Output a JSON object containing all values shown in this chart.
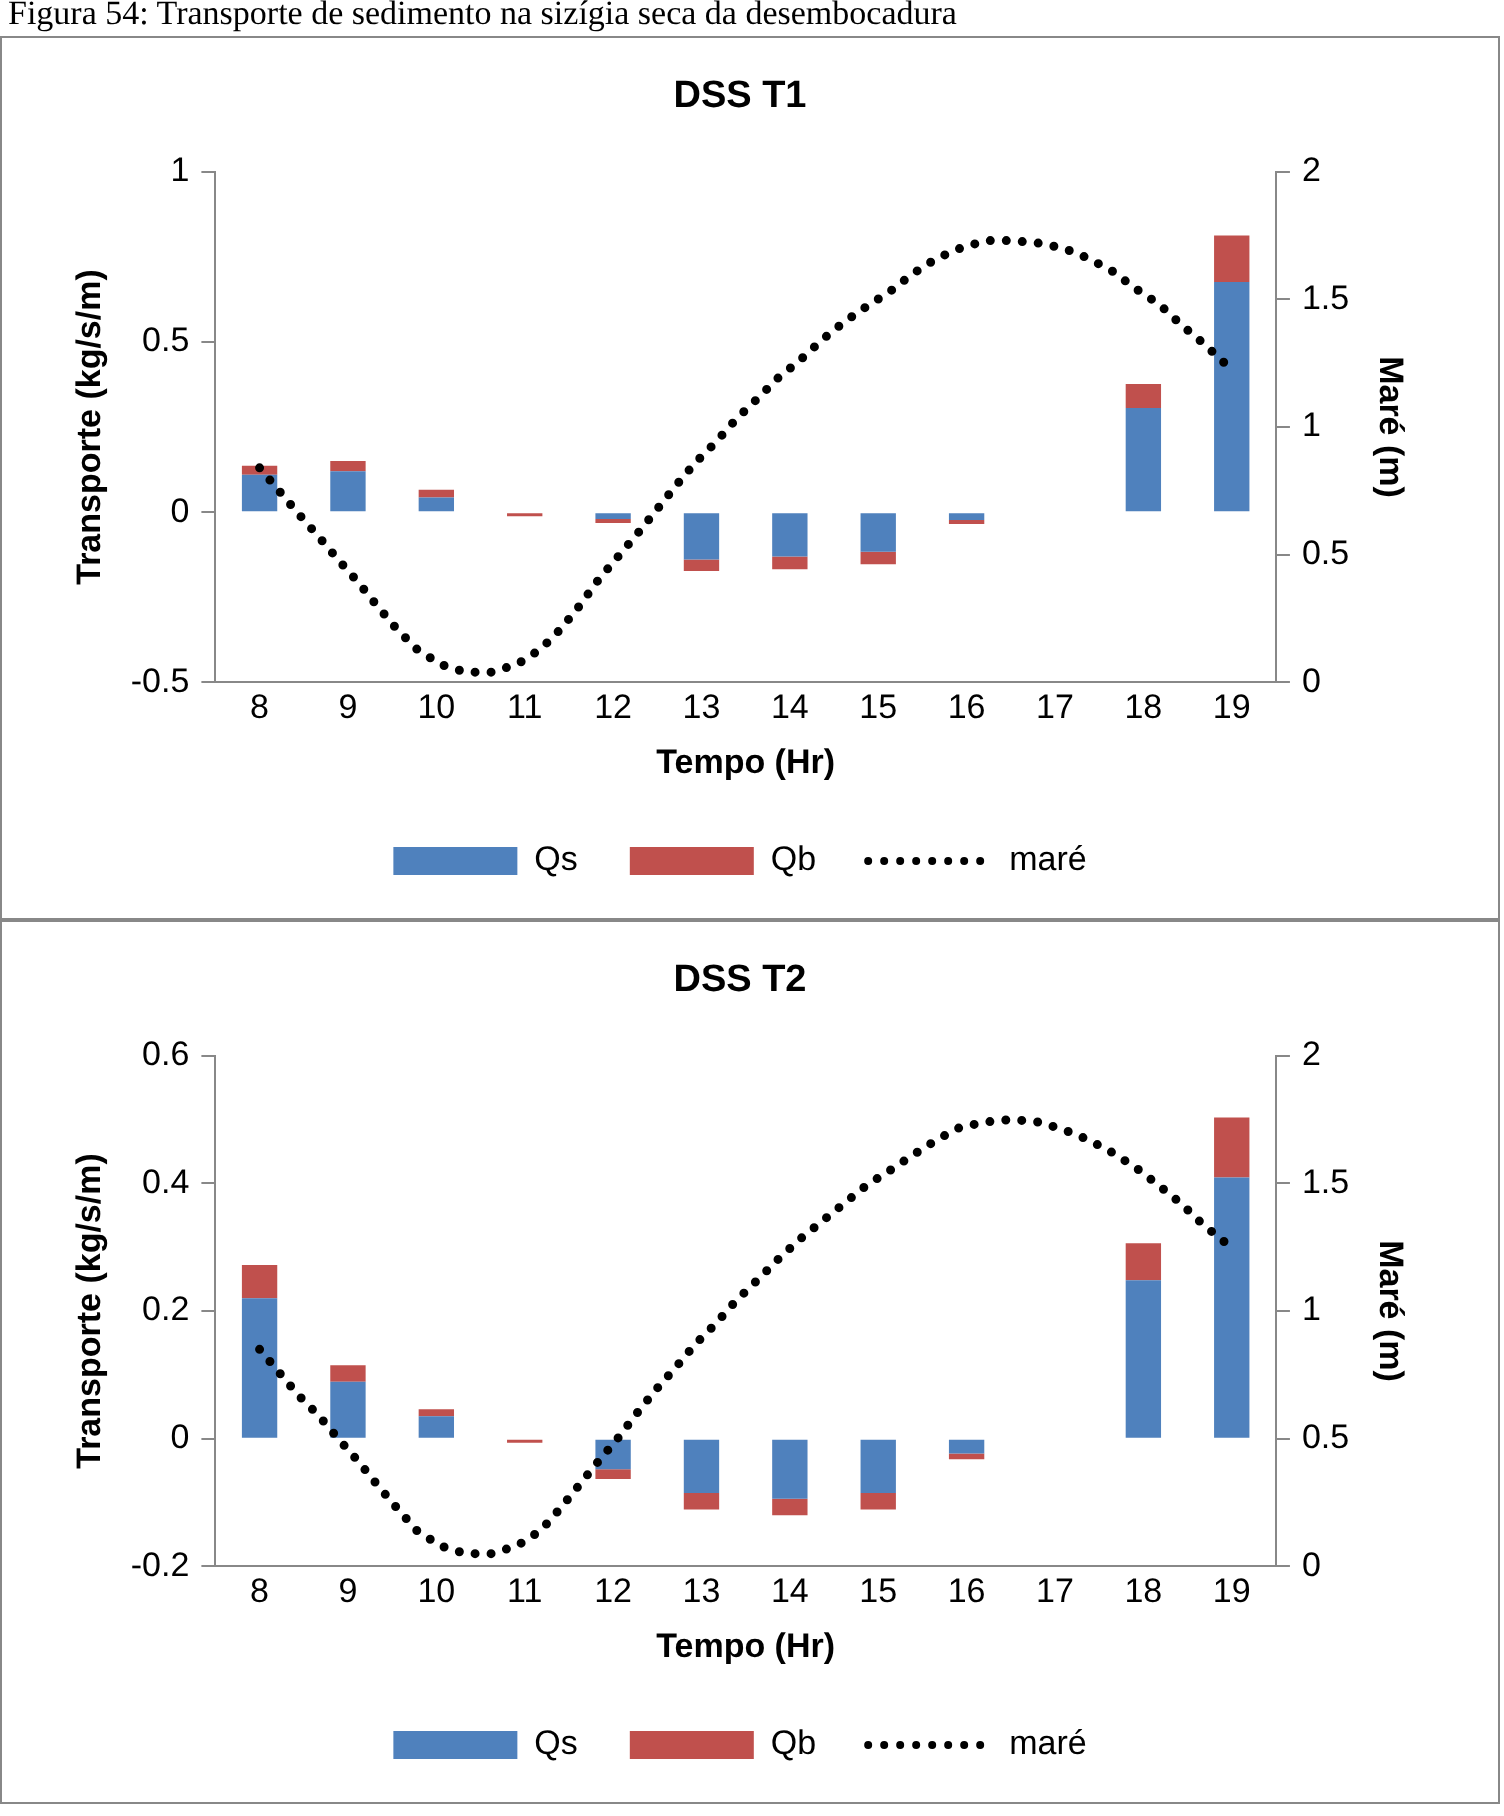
{
  "chart_data": [
    {
      "type": "bar",
      "title": "DSS T1",
      "xlabel": "Tempo (Hr)",
      "ylabel": "Transporte (kg/s/m)",
      "y2label": "Maré (m)",
      "annotations": [
        "Figura 54: Transporte de sedimento na sizígia seca da desembocadura"
      ],
      "stacked": true,
      "legend": "bottom",
      "grid": false,
      "x": [
        8,
        9,
        10,
        11,
        12,
        13,
        14,
        15,
        16,
        17,
        18,
        19
      ],
      "xlim": [
        7.5,
        19.5
      ],
      "xticks": [
        8,
        9,
        10,
        11,
        12,
        13,
        14,
        15,
        16,
        17,
        18,
        19
      ],
      "ylim": [
        -0.5,
        1
      ],
      "yticks": [
        -0.5,
        0,
        0.5,
        1
      ],
      "y2lim": [
        0,
        2
      ],
      "y2ticks": [
        0,
        0.5,
        1,
        1.5,
        2
      ],
      "series": [
        {
          "name": "Qs",
          "color": "#4f81bd",
          "values": [
            0.11,
            0.12,
            0.043,
            null,
            -0.02,
            -0.139,
            -0.13,
            -0.116,
            -0.023,
            null,
            0.306,
            0.676
          ]
        },
        {
          "name": "Qb",
          "color": "#c0504d",
          "values": [
            0.026,
            0.03,
            0.023,
            -0.008,
            -0.012,
            -0.034,
            -0.038,
            -0.037,
            -0.012,
            null,
            0.07,
            0.136
          ]
        },
        {
          "name": "maré",
          "type": "line",
          "axis": "y2",
          "color": "#000000",
          "line_style": "dotted",
          "marker": "none",
          "x": [
            8,
            8.22,
            8.44,
            8.67,
            8.89,
            9.12,
            9.33,
            9.55,
            9.78,
            10.05,
            10.33,
            10.62,
            10.91,
            11.18,
            11.41,
            11.62,
            11.83,
            12.05,
            12.27,
            12.48,
            12.71,
            12.93,
            13.16,
            13.39,
            13.63,
            13.86,
            14.11,
            14.36,
            14.61,
            14.86,
            15.13,
            15.39,
            15.66,
            15.93,
            16.22,
            16.51,
            16.81,
            17.1,
            17.38,
            17.65,
            17.92,
            18.18,
            18.43,
            18.67,
            18.92
          ],
          "values": [
            0.84,
            0.75,
            0.66,
            0.57,
            0.48,
            0.39,
            0.3,
            0.21,
            0.13,
            0.07,
            0.04,
            0.04,
            0.07,
            0.13,
            0.21,
            0.3,
            0.4,
            0.49,
            0.58,
            0.67,
            0.77,
            0.86,
            0.94,
            1.03,
            1.11,
            1.19,
            1.26,
            1.34,
            1.41,
            1.47,
            1.53,
            1.6,
            1.66,
            1.7,
            1.73,
            1.73,
            1.72,
            1.7,
            1.66,
            1.61,
            1.54,
            1.48,
            1.4,
            1.33,
            1.25
          ]
        }
      ]
    },
    {
      "type": "bar",
      "title": "DSS T2",
      "xlabel": "Tempo (Hr)",
      "ylabel": "Transporte (kg/s/m)",
      "y2label": "Maré (m)",
      "stacked": true,
      "legend": "bottom",
      "grid": false,
      "x": [
        8,
        9,
        10,
        11,
        12,
        13,
        14,
        15,
        16,
        17,
        18,
        19
      ],
      "xlim": [
        7.5,
        19.5
      ],
      "xticks": [
        8,
        9,
        10,
        11,
        12,
        13,
        14,
        15,
        16,
        17,
        18,
        19
      ],
      "ylim": [
        -0.2,
        0.6
      ],
      "yticks": [
        -0.2,
        0,
        0.2,
        0.4,
        0.6
      ],
      "y2lim": [
        0,
        2
      ],
      "y2ticks": [
        0,
        0.5,
        1,
        1.5,
        2
      ],
      "series": [
        {
          "name": "Qs",
          "color": "#4f81bd",
          "values": [
            0.22,
            0.089,
            0.035,
            null,
            -0.048,
            -0.085,
            -0.094,
            -0.085,
            -0.023,
            null,
            0.248,
            0.409
          ]
        },
        {
          "name": "Qb",
          "color": "#c0504d",
          "values": [
            0.052,
            0.026,
            0.011,
            -0.004,
            -0.015,
            -0.026,
            -0.026,
            -0.026,
            -0.009,
            null,
            0.058,
            0.094
          ]
        },
        {
          "name": "maré",
          "type": "line",
          "axis": "y2",
          "color": "#000000",
          "line_style": "dotted",
          "marker": "none",
          "x": [
            8,
            8.22,
            8.44,
            8.67,
            8.89,
            9.12,
            9.33,
            9.55,
            9.78,
            10.05,
            10.33,
            10.62,
            10.91,
            11.18,
            11.41,
            11.62,
            11.83,
            12.05,
            12.27,
            12.48,
            12.71,
            12.93,
            13.16,
            13.39,
            13.63,
            13.86,
            14.11,
            14.36,
            14.61,
            14.86,
            15.13,
            15.39,
            15.66,
            15.93,
            16.22,
            16.51,
            16.81,
            17.1,
            17.38,
            17.65,
            17.92,
            18.18,
            18.43,
            18.67,
            18.92
          ],
          "values": [
            0.85,
            0.76,
            0.67,
            0.59,
            0.5,
            0.41,
            0.32,
            0.23,
            0.14,
            0.08,
            0.05,
            0.05,
            0.08,
            0.14,
            0.23,
            0.32,
            0.41,
            0.5,
            0.6,
            0.69,
            0.78,
            0.87,
            0.95,
            1.04,
            1.12,
            1.2,
            1.28,
            1.35,
            1.42,
            1.49,
            1.55,
            1.61,
            1.67,
            1.72,
            1.74,
            1.75,
            1.74,
            1.71,
            1.67,
            1.62,
            1.56,
            1.49,
            1.42,
            1.34,
            1.27
          ]
        }
      ]
    }
  ]
}
